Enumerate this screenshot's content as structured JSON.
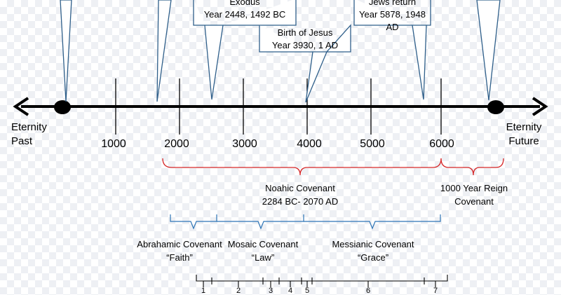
{
  "eternity_past": [
    "Eternity",
    "Past"
  ],
  "eternity_future": [
    "Eternity",
    "Future"
  ],
  "ticks": [
    "1000",
    "2000",
    "3000",
    "4000",
    "5000",
    "6000"
  ],
  "callouts": {
    "exodus": [
      "Exodus",
      "Year 2448, 1492 BC"
    ],
    "jesus": [
      "Birth of Jesus",
      "Year 3930, 1 AD"
    ],
    "jews": [
      "Jews return",
      "Year 5878, 1948 AD"
    ]
  },
  "red_covenants": {
    "noahic": [
      "Noahic Covenant",
      "2284 BC- 2070 AD"
    ],
    "reign": [
      "1000 Year Reign",
      "Covenant"
    ]
  },
  "blue_covenants": {
    "abrahamic": [
      "Abrahamic Covenant",
      "“Faith”"
    ],
    "mosaic": [
      "Mosaic Covenant",
      "“Law”"
    ],
    "messianic": [
      "Messianic Covenant",
      "“Grace”"
    ]
  },
  "bottom_numbers": [
    "1",
    "2",
    "3",
    "4",
    "5",
    "6",
    "7"
  ],
  "colors": {
    "line": "#000000",
    "callout_border": "#2f5f8a",
    "red": "#d62728",
    "blue": "#2e75b6"
  }
}
